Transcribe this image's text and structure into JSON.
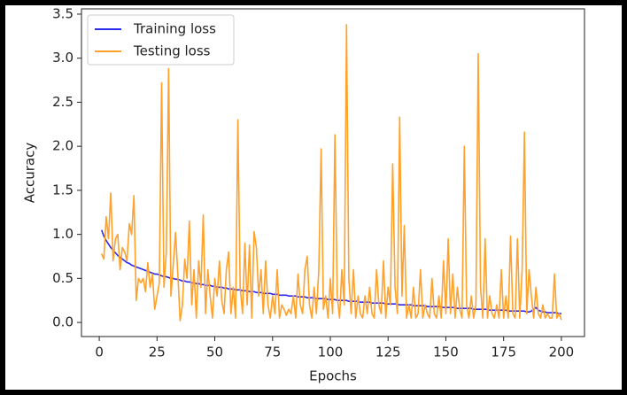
{
  "chart_data": {
    "type": "line",
    "xlabel": "Epochs",
    "ylabel": "Accuracy",
    "x": [
      1,
      2,
      3,
      4,
      5,
      6,
      7,
      8,
      9,
      10,
      11,
      12,
      13,
      14,
      15,
      16,
      17,
      18,
      19,
      20,
      21,
      22,
      23,
      24,
      25,
      26,
      27,
      28,
      29,
      30,
      31,
      32,
      33,
      34,
      35,
      36,
      37,
      38,
      39,
      40,
      41,
      42,
      43,
      44,
      45,
      46,
      47,
      48,
      49,
      50,
      51,
      52,
      53,
      54,
      55,
      56,
      57,
      58,
      59,
      60,
      61,
      62,
      63,
      64,
      65,
      66,
      67,
      68,
      69,
      70,
      71,
      72,
      73,
      74,
      75,
      76,
      77,
      78,
      79,
      80,
      81,
      82,
      83,
      84,
      85,
      86,
      87,
      88,
      89,
      90,
      91,
      92,
      93,
      94,
      95,
      96,
      97,
      98,
      99,
      100,
      101,
      102,
      103,
      104,
      105,
      106,
      107,
      108,
      109,
      110,
      111,
      112,
      113,
      114,
      115,
      116,
      117,
      118,
      119,
      120,
      121,
      122,
      123,
      124,
      125,
      126,
      127,
      128,
      129,
      130,
      131,
      132,
      133,
      134,
      135,
      136,
      137,
      138,
      139,
      140,
      141,
      142,
      143,
      144,
      145,
      146,
      147,
      148,
      149,
      150,
      151,
      152,
      153,
      154,
      155,
      156,
      157,
      158,
      159,
      160,
      161,
      162,
      163,
      164,
      165,
      166,
      167,
      168,
      169,
      170,
      171,
      172,
      173,
      174,
      175,
      176,
      177,
      178,
      179,
      180,
      181,
      182,
      183,
      184,
      185,
      186,
      187,
      188,
      189,
      190,
      191,
      192,
      193,
      194,
      195,
      196,
      197,
      198,
      199,
      200
    ],
    "series": [
      {
        "name": "Training loss",
        "color": "#2a2aee",
        "values": [
          1.05,
          0.98,
          0.93,
          0.89,
          0.85,
          0.82,
          0.79,
          0.76,
          0.74,
          0.72,
          0.7,
          0.68,
          0.67,
          0.65,
          0.64,
          0.63,
          0.62,
          0.61,
          0.6,
          0.59,
          0.58,
          0.57,
          0.56,
          0.55,
          0.55,
          0.54,
          0.53,
          0.52,
          0.52,
          0.51,
          0.5,
          0.5,
          0.49,
          0.49,
          0.48,
          0.47,
          0.47,
          0.46,
          0.46,
          0.45,
          0.45,
          0.44,
          0.44,
          0.43,
          0.43,
          0.42,
          0.42,
          0.42,
          0.41,
          0.41,
          0.4,
          0.4,
          0.4,
          0.39,
          0.39,
          0.38,
          0.38,
          0.38,
          0.37,
          0.37,
          0.37,
          0.36,
          0.36,
          0.36,
          0.35,
          0.35,
          0.35,
          0.34,
          0.34,
          0.34,
          0.33,
          0.33,
          0.33,
          0.33,
          0.32,
          0.32,
          0.32,
          0.31,
          0.31,
          0.31,
          0.31,
          0.3,
          0.3,
          0.3,
          0.3,
          0.29,
          0.29,
          0.29,
          0.29,
          0.28,
          0.28,
          0.28,
          0.28,
          0.27,
          0.27,
          0.27,
          0.27,
          0.27,
          0.26,
          0.26,
          0.26,
          0.26,
          0.25,
          0.25,
          0.25,
          0.25,
          0.25,
          0.24,
          0.24,
          0.24,
          0.24,
          0.24,
          0.23,
          0.23,
          0.23,
          0.23,
          0.23,
          0.22,
          0.22,
          0.22,
          0.22,
          0.22,
          0.22,
          0.21,
          0.21,
          0.21,
          0.21,
          0.21,
          0.21,
          0.2,
          0.2,
          0.2,
          0.2,
          0.2,
          0.2,
          0.19,
          0.19,
          0.19,
          0.19,
          0.19,
          0.19,
          0.18,
          0.18,
          0.18,
          0.18,
          0.18,
          0.18,
          0.18,
          0.17,
          0.17,
          0.17,
          0.17,
          0.17,
          0.17,
          0.16,
          0.16,
          0.16,
          0.16,
          0.16,
          0.16,
          0.16,
          0.15,
          0.15,
          0.15,
          0.15,
          0.15,
          0.15,
          0.15,
          0.14,
          0.14,
          0.14,
          0.14,
          0.14,
          0.14,
          0.14,
          0.14,
          0.13,
          0.13,
          0.13,
          0.13,
          0.13,
          0.13,
          0.13,
          0.13,
          0.12,
          0.12,
          0.13,
          0.15,
          0.17,
          0.14,
          0.13,
          0.12,
          0.12,
          0.11,
          0.11,
          0.11,
          0.11,
          0.11,
          0.1,
          0.1
        ]
      },
      {
        "name": "Testing loss",
        "color": "#ffa12a",
        "values": [
          0.78,
          0.72,
          1.2,
          0.95,
          1.47,
          0.7,
          0.95,
          1.0,
          0.6,
          0.85,
          0.8,
          0.7,
          1.12,
          1.0,
          1.44,
          0.25,
          0.5,
          0.45,
          0.5,
          0.35,
          0.68,
          0.4,
          0.55,
          0.15,
          0.3,
          0.45,
          2.72,
          0.4,
          0.8,
          2.88,
          0.3,
          0.65,
          1.02,
          0.55,
          0.02,
          0.2,
          0.72,
          0.5,
          1.15,
          0.2,
          0.6,
          0.05,
          0.7,
          0.4,
          1.22,
          0.1,
          0.6,
          0.3,
          0.05,
          0.5,
          0.3,
          0.7,
          0.25,
          0.1,
          0.6,
          0.8,
          0.1,
          0.4,
          0.05,
          2.3,
          0.4,
          0.1,
          0.9,
          0.2,
          0.88,
          0.05,
          1.03,
          0.85,
          0.3,
          0.6,
          0.1,
          0.7,
          0.2,
          0.05,
          0.3,
          0.1,
          0.6,
          0.05,
          0.2,
          0.15,
          0.08,
          0.15,
          0.1,
          0.3,
          0.05,
          0.55,
          0.2,
          0.1,
          0.6,
          0.75,
          0.2,
          0.05,
          0.4,
          0.1,
          0.6,
          1.97,
          0.15,
          0.3,
          0.05,
          0.5,
          0.1,
          2.13,
          0.3,
          0.05,
          0.6,
          0.2,
          3.38,
          0.5,
          0.1,
          0.6,
          0.05,
          0.3,
          0.1,
          0.05,
          0.3,
          0.1,
          0.4,
          0.1,
          0.05,
          0.6,
          0.2,
          0.1,
          0.7,
          0.05,
          0.4,
          0.2,
          1.8,
          0.4,
          0.1,
          2.33,
          0.3,
          1.1,
          0.05,
          0.2,
          0.05,
          0.4,
          0.05,
          0.1,
          0.6,
          0.05,
          0.2,
          0.1,
          0.05,
          0.5,
          0.1,
          0.05,
          0.3,
          0.05,
          0.7,
          0.1,
          0.95,
          0.1,
          0.55,
          0.05,
          0.4,
          0.15,
          0.05,
          2.0,
          0.2,
          0.05,
          0.3,
          0.05,
          0.2,
          3.05,
          0.4,
          0.05,
          0.95,
          0.05,
          0.3,
          0.1,
          0.05,
          0.2,
          0.05,
          0.6,
          0.05,
          0.3,
          0.05,
          0.98,
          0.1,
          0.05,
          0.95,
          0.05,
          0.6,
          2.16,
          0.1,
          0.6,
          0.3,
          0.05,
          0.4,
          0.1,
          0.05,
          0.2,
          0.05,
          0.1,
          0.05,
          0.05,
          0.55,
          0.05,
          0.1,
          0.03
        ]
      }
    ],
    "xlim": [
      -7.7,
      210
    ],
    "ylim": [
      -0.16,
      3.56
    ],
    "xticks": [
      0,
      25,
      50,
      75,
      100,
      125,
      150,
      175,
      200
    ],
    "yticks": [
      {
        "value": 0,
        "label": "0.0"
      },
      0.5,
      {
        "value": 1,
        "label": "1.0"
      },
      1.5,
      {
        "value": 2,
        "label": "2.0"
      },
      2.5,
      {
        "value": 3,
        "label": "3.0"
      },
      3.5
    ],
    "legend": "upper left"
  }
}
